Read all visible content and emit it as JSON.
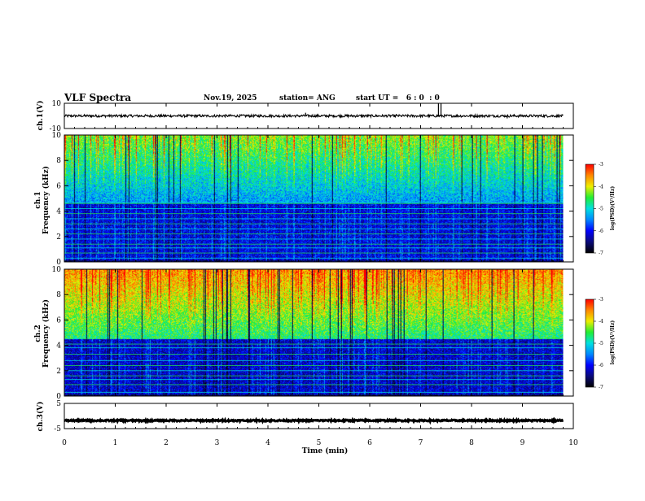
{
  "header": {
    "title": "VLF Spectra",
    "date": "Nov.19, 2025",
    "station": "station= ANG",
    "start_ut": "start UT =   6 : 0  : 0"
  },
  "chart_data": [
    {
      "type": "line",
      "name": "ch1-waveform",
      "ylabel": "ch.1(V)",
      "ylim": [
        -10,
        10
      ],
      "y_ticks": [
        "10",
        "-10"
      ],
      "baseline": 0,
      "noise_amplitude": 1,
      "spikes": [
        {
          "t": 4.74,
          "v": 2.5
        },
        {
          "t": 6.52,
          "v": 1.5
        },
        {
          "t": 7.35,
          "v": 10
        },
        {
          "t": 7.4,
          "v": 10
        },
        {
          "t": 8.7,
          "v": -2
        }
      ],
      "xlim": [
        0,
        9.8
      ]
    },
    {
      "type": "heatmap",
      "name": "ch1-spectrogram",
      "ylabel": "Frequency (kHz)",
      "channel_label": "ch.1",
      "ylim": [
        0,
        10
      ],
      "y_ticks": [
        "0",
        "2",
        "4",
        "6",
        "8",
        "10"
      ],
      "xlim": [
        0,
        9.8
      ],
      "background_level": -6.2,
      "upper_band_level": -4.8,
      "upper_band_start_khz": 4.6,
      "lines_khz": [
        0.3,
        0.7,
        1.1,
        1.4,
        1.8,
        2.2,
        2.6,
        3.0,
        3.4,
        3.8,
        4.2,
        4.6,
        4.7
      ],
      "colorbar": {
        "label": "log(PSD)(V²/Hz)",
        "min": -7,
        "max": -3,
        "ticks": [
          "-3",
          "-4",
          "-5",
          "-6",
          "-7"
        ]
      }
    },
    {
      "type": "heatmap",
      "name": "ch2-spectrogram",
      "ylabel": "Frequency (kHz)",
      "channel_label": "ch.2",
      "ylim": [
        0,
        10
      ],
      "y_ticks": [
        "0",
        "2",
        "4",
        "6",
        "8",
        "10"
      ],
      "xlim": [
        0,
        9.8
      ],
      "background_level": -6.3,
      "upper_band_level": -4.1,
      "upper_band_start_khz": 4.5,
      "lines_khz": [
        0.3,
        0.9,
        1.3,
        1.6,
        2.0,
        2.4,
        2.8,
        3.3,
        3.8,
        4.1
      ],
      "colorbar": {
        "label": "log(PSD)(V²/Hz)",
        "min": -7,
        "max": -3,
        "ticks": [
          "-3",
          "-4",
          "-5",
          "-6",
          "-7"
        ]
      }
    },
    {
      "type": "line",
      "name": "ch3-waveform",
      "ylabel": "ch.3(V)",
      "ylim": [
        -5,
        5
      ],
      "y_ticks": [
        "5",
        "-5"
      ],
      "baseline": -1.8,
      "noise_amplitude": 0.3,
      "spikes": [],
      "xlim": [
        0,
        9.8
      ]
    }
  ],
  "x_axis": {
    "label": "Time (min)",
    "xlim": [
      0,
      10
    ],
    "ticks": [
      "0",
      "1",
      "2",
      "3",
      "4",
      "5",
      "6",
      "7",
      "8",
      "9",
      "10"
    ]
  },
  "colors": {
    "colormap": [
      "#000000",
      "#0a0a7a",
      "#0000ff",
      "#0088ff",
      "#00e0e0",
      "#22ee33",
      "#eeee00",
      "#ff8800",
      "#ff0000",
      "#ffffff"
    ]
  }
}
